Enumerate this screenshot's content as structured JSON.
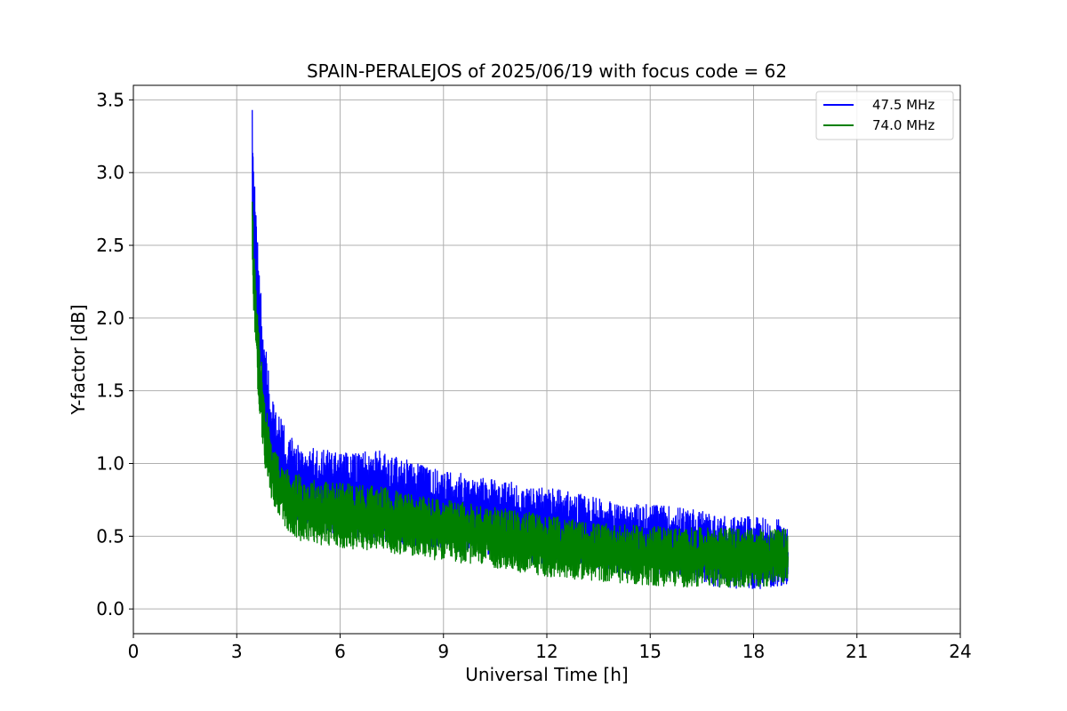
{
  "chart_data": {
    "type": "line",
    "title": "SPAIN-PERALEJOS of 2025/06/19 with focus code = 62",
    "xlabel": "Universal Time [h]",
    "ylabel": "Y-factor [dB]",
    "xlim": [
      0,
      24
    ],
    "ylim": [
      -0.17,
      3.6
    ],
    "xticks": [
      0,
      3,
      6,
      9,
      12,
      15,
      18,
      21,
      24
    ],
    "xtick_labels": [
      "0",
      "3",
      "6",
      "9",
      "12",
      "15",
      "18",
      "21",
      "24"
    ],
    "yticks": [
      0.0,
      0.5,
      1.0,
      1.5,
      2.0,
      2.5,
      3.0,
      3.5
    ],
    "ytick_labels": [
      "0.0",
      "0.5",
      "1.0",
      "1.5",
      "2.0",
      "2.5",
      "3.0",
      "3.5"
    ],
    "grid": true,
    "legend_position": "top-right",
    "series": [
      {
        "name": "47.5 MHz",
        "color": "#0000ff",
        "x": [
          3.45,
          3.5,
          3.6,
          3.8,
          4.0,
          4.3,
          4.6,
          5.0,
          6.0,
          7.0,
          8.0,
          9.0,
          10.0,
          11.0,
          12.0,
          13.0,
          14.0,
          15.0,
          16.0,
          17.0,
          18.0,
          19.0
        ],
        "y_low": [
          2.5,
          2.2,
          1.7,
          1.15,
          0.85,
          0.7,
          0.6,
          0.55,
          0.5,
          0.47,
          0.44,
          0.41,
          0.38,
          0.34,
          0.3,
          0.28,
          0.25,
          0.22,
          0.2,
          0.15,
          0.13,
          0.16
        ],
        "y_high": [
          3.43,
          3.0,
          2.55,
          1.9,
          1.45,
          1.3,
          1.2,
          1.12,
          1.08,
          1.1,
          1.02,
          0.95,
          0.92,
          0.87,
          0.83,
          0.8,
          0.73,
          0.72,
          0.7,
          0.65,
          0.63,
          0.62
        ]
      },
      {
        "name": "74.0 MHz",
        "color": "#008000",
        "x": [
          3.45,
          3.5,
          3.6,
          3.8,
          4.0,
          4.3,
          4.6,
          5.0,
          6.0,
          7.0,
          8.0,
          9.0,
          10.0,
          11.0,
          12.0,
          13.0,
          14.0,
          15.0,
          16.0,
          17.0,
          18.0,
          19.0
        ],
        "y_low": [
          2.3,
          2.0,
          1.5,
          1.0,
          0.75,
          0.6,
          0.5,
          0.45,
          0.42,
          0.4,
          0.36,
          0.33,
          0.3,
          0.26,
          0.22,
          0.2,
          0.18,
          0.16,
          0.15,
          0.15,
          0.15,
          0.17
        ],
        "y_high": [
          2.8,
          2.55,
          2.05,
          1.5,
          1.15,
          1.0,
          0.95,
          0.9,
          0.87,
          0.85,
          0.8,
          0.75,
          0.72,
          0.68,
          0.65,
          0.6,
          0.58,
          0.57,
          0.56,
          0.56,
          0.55,
          0.55
        ]
      }
    ]
  }
}
